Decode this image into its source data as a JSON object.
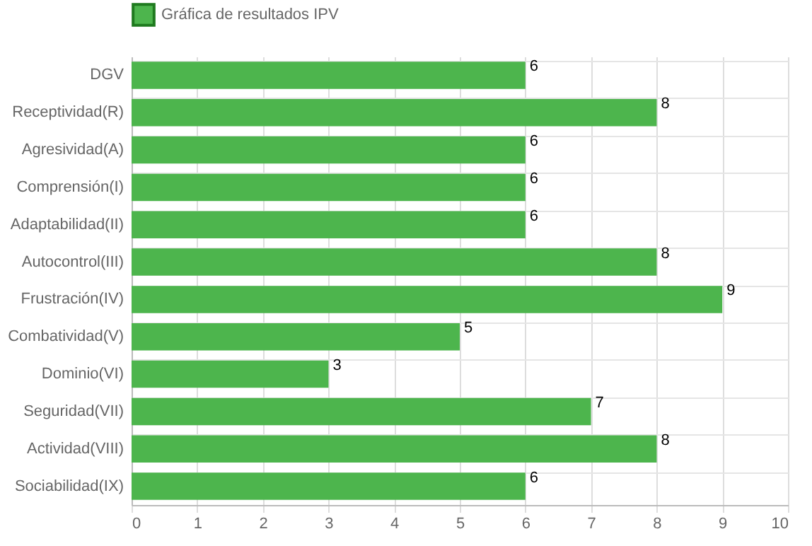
{
  "chart_data": {
    "type": "bar",
    "orientation": "horizontal",
    "categories": [
      "DGV",
      "Receptividad(R)",
      "Agresividad(A)",
      "Comprensión(I)",
      "Adaptabilidad(II)",
      "Autocontrol(III)",
      "Frustración(IV)",
      "Combatividad(V)",
      "Dominio(VI)",
      "Seguridad(VII)",
      "Actividad(VIII)",
      "Sociabilidad(IX)"
    ],
    "series": [
      {
        "name": "Gráfica de resultados IPV",
        "color": "#4db54d",
        "values": [
          6,
          8,
          6,
          6,
          6,
          8,
          9,
          5,
          3,
          7,
          8,
          6
        ]
      }
    ],
    "xlim": [
      0,
      10
    ],
    "xticks": [
      0,
      1,
      2,
      3,
      4,
      5,
      6,
      7,
      8,
      9,
      10
    ],
    "grid": true,
    "legend": "top",
    "data_labels": true
  }
}
